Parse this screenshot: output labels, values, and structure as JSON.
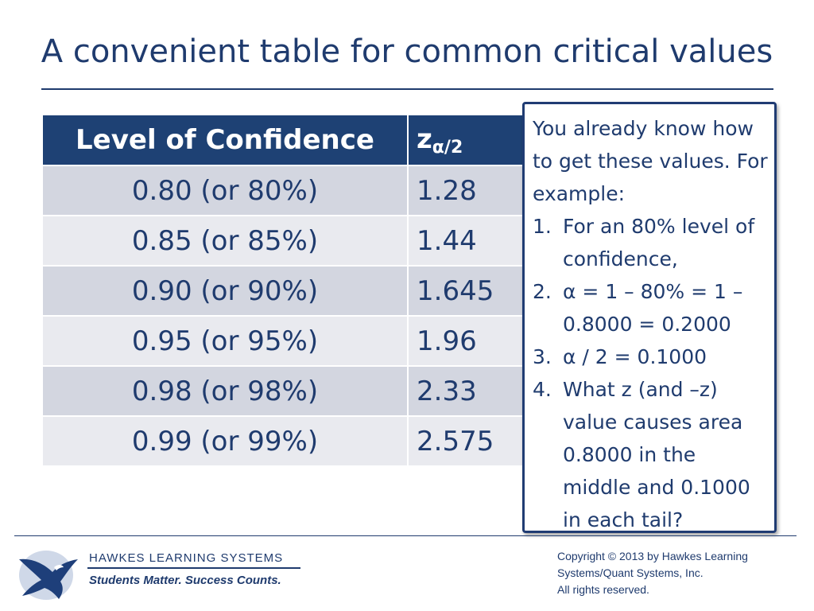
{
  "slide": {
    "title": "A convenient table for common critical values"
  },
  "table": {
    "headers": {
      "confidence": "Level of Confidence",
      "z_main": "z",
      "z_sub": "α/2"
    },
    "rows": [
      {
        "confidence": "0.80 (or 80%)",
        "z": "1.28"
      },
      {
        "confidence": "0.85 (or 85%)",
        "z": "1.44"
      },
      {
        "confidence": "0.90 (or 90%)",
        "z": "1.645"
      },
      {
        "confidence": "0.95 (or 95%)",
        "z": "1.96"
      },
      {
        "confidence": "0.98 (or 98%)",
        "z": "2.33"
      },
      {
        "confidence": "0.99 (or 99%)",
        "z": "2.575"
      }
    ]
  },
  "note": {
    "intro": "You already know how to get these values.  For example:",
    "steps": [
      {
        "num": "1.",
        "text": "For an 80% level of confidence,"
      },
      {
        "num": "2.",
        "text": "α = 1 – 80% = 1 – 0.8000 = 0.2000"
      },
      {
        "num": "3.",
        "text": "α / 2 = 0.1000"
      },
      {
        "num": "4.",
        "text": "What z (and –z) value causes area 0.8000 in the middle and 0.1000 in each tail?"
      }
    ]
  },
  "footer": {
    "logo_icon": "eagle-icon",
    "brand_name": "HAWKES  LEARNING  SYSTEMS",
    "tagline": "Students Matter. Success Counts.",
    "copyright_lines": [
      "Copyright © 2013 by Hawkes Learning",
      "Systems/Quant Systems, Inc.",
      "All rights reserved."
    ]
  },
  "colors": {
    "navy": "#1f3b6e",
    "header_fill": "#1e4174",
    "row_dark": "#d3d6e0",
    "row_light": "#e9eaef"
  }
}
